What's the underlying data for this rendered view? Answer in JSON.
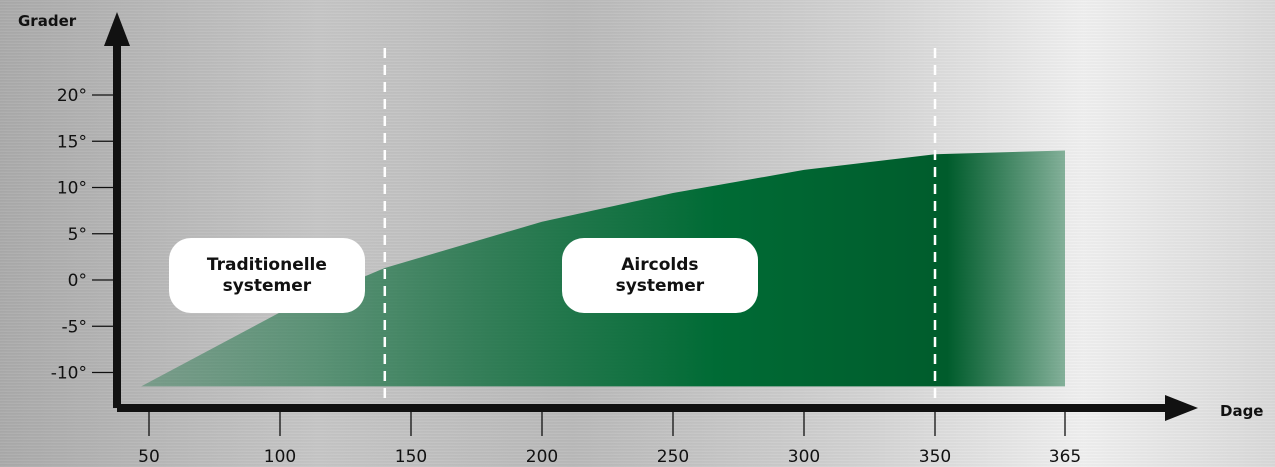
{
  "chart_data": {
    "type": "area",
    "xlabel": "Dage",
    "ylabel": "Grader",
    "x_ticks": [
      50,
      100,
      150,
      200,
      250,
      300,
      350,
      365
    ],
    "y_ticks": [
      "20°",
      "15°",
      "10°",
      "5°",
      "0°",
      "-5°",
      "-10°"
    ],
    "y_tick_values": [
      20,
      15,
      10,
      5,
      0,
      -5,
      -10
    ],
    "xlim": [
      40,
      365
    ],
    "ylim": [
      -12,
      24
    ],
    "area": {
      "x": [
        47,
        100,
        140,
        200,
        250,
        300,
        350,
        365
      ],
      "y": [
        -11.5,
        -3.5,
        1.3,
        6.3,
        9.4,
        11.9,
        13.6,
        14.0
      ],
      "baseline": -11.5
    },
    "dividers_x": [
      140,
      350
    ],
    "regions": [
      {
        "label_line1": "Traditionelle",
        "label_line2": "systemer",
        "x": 95
      },
      {
        "label_line1": "Aircolds",
        "label_line2": "systemer",
        "x": 245
      }
    ],
    "colors": {
      "area": "#0b6b3a",
      "axis": "#111111",
      "divider": "#ffffff"
    }
  }
}
